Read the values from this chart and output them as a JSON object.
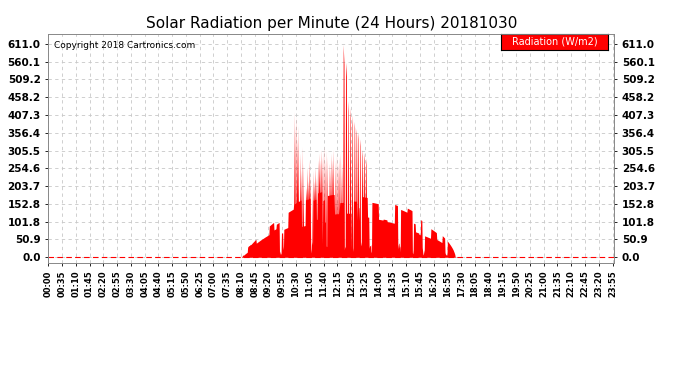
{
  "title": "Solar Radiation per Minute (24 Hours) 20181030",
  "copyright_text": "Copyright 2018 Cartronics.com",
  "legend_label": "Radiation (W/m2)",
  "yticks": [
    0.0,
    50.9,
    101.8,
    152.8,
    203.7,
    254.6,
    305.5,
    356.4,
    407.3,
    458.2,
    509.2,
    560.1,
    611.0
  ],
  "ymax": 640,
  "ymin": -15,
  "fill_color": "#FF0000",
  "bg_color": "#FFFFFF",
  "grid_color": "#C8C8C8",
  "title_fontsize": 11,
  "legend_bg": "#FF0000",
  "legend_text_color": "#FFFFFF",
  "copyright_color": "#000000",
  "dashed_line_color": "#FF0000",
  "total_minutes": 1440,
  "sunrise_min": 492,
  "sunset_min": 1035,
  "peak_val": 611.0,
  "xtick_step": 35
}
